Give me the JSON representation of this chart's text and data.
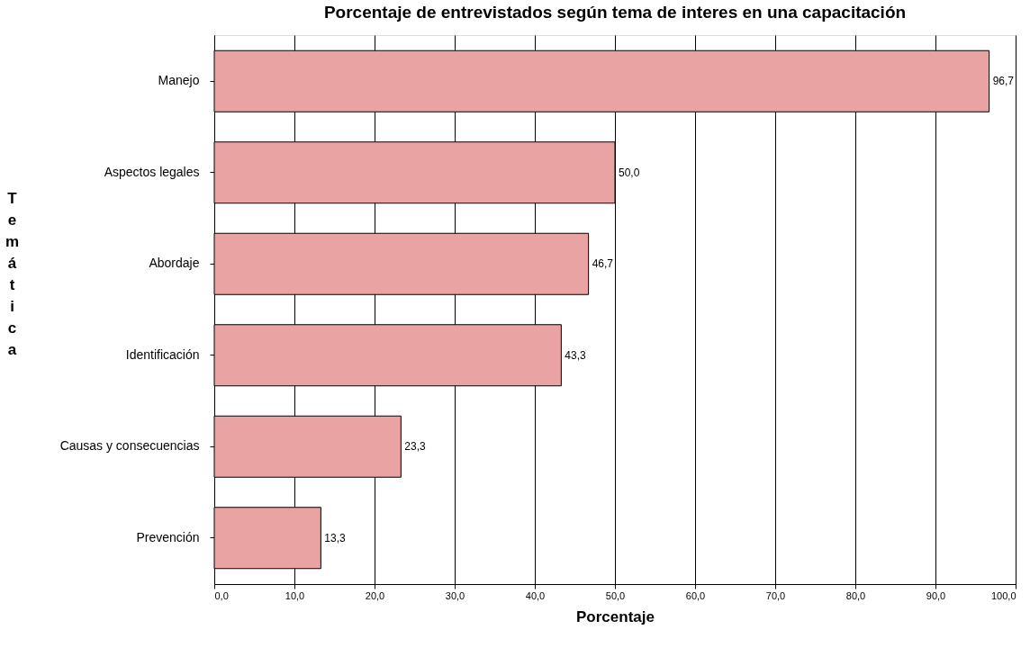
{
  "chart_data": {
    "type": "bar",
    "orientation": "horizontal",
    "title": "Porcentaje de entrevistados según tema de interes en una capacitación",
    "xlabel": "Porcentaje",
    "ylabel": "Temática",
    "categories": [
      "Manejo",
      "Aspectos legales",
      "Abordaje",
      "Identificación",
      "Causas y consecuencias",
      "Prevención"
    ],
    "values": [
      96.7,
      50.0,
      46.7,
      43.3,
      23.3,
      13.3
    ],
    "value_labels": [
      "96,7",
      "50,0",
      "46,7",
      "43,3",
      "23,3",
      "13,3"
    ],
    "color": "#e9a3a3",
    "xlim": [
      0,
      100
    ],
    "xticks": [
      {
        "value": 0,
        "label": "0,0"
      },
      {
        "value": 10,
        "label": "10,0"
      },
      {
        "value": 20,
        "label": "20,0"
      },
      {
        "value": 30,
        "label": "30,0"
      },
      {
        "value": 40,
        "label": "40,0"
      },
      {
        "value": 50,
        "label": "50,0"
      },
      {
        "value": 60,
        "label": "60,0"
      },
      {
        "value": 70,
        "label": "70,0"
      },
      {
        "value": 80,
        "label": "80,0"
      },
      {
        "value": 90,
        "label": "90,0"
      },
      {
        "value": 100,
        "label": "100,0"
      }
    ],
    "grid": "x"
  }
}
